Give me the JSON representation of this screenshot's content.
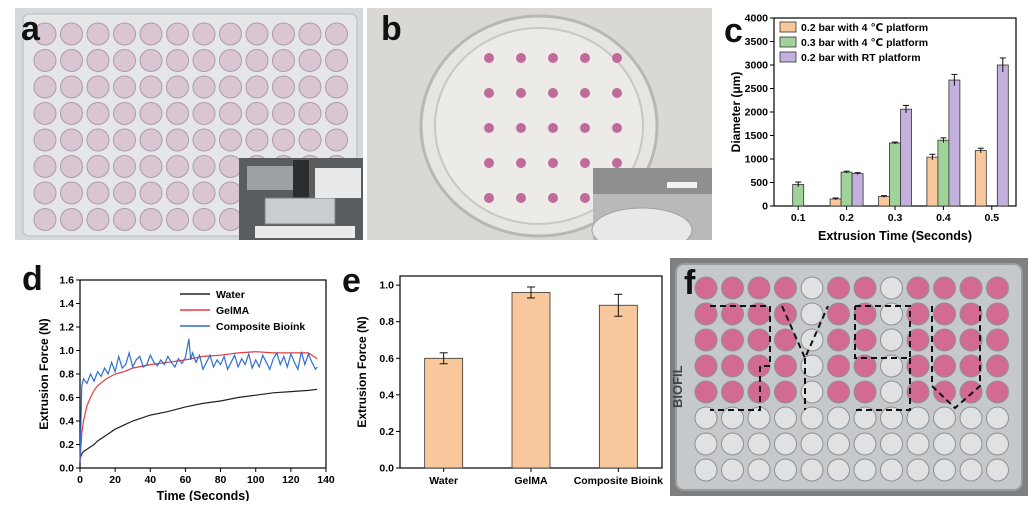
{
  "panels": {
    "a": {
      "letter": "a"
    },
    "b": {
      "letter": "b"
    },
    "c": {
      "letter": "c"
    },
    "d": {
      "letter": "d"
    },
    "e": {
      "letter": "e"
    },
    "f": {
      "letter": "f",
      "plate_brand": "BIOFIL"
    }
  },
  "chart_data": [
    {
      "id": "c",
      "type": "bar",
      "xlabel": "Extrusion Time (Seconds)",
      "ylabel": "Diameter (μm)",
      "categories": [
        "0.1",
        "0.2",
        "0.3",
        "0.4",
        "0.5"
      ],
      "ylim": [
        0,
        4000
      ],
      "yticks": [
        0,
        500,
        1000,
        1500,
        2000,
        2500,
        3000,
        3500,
        4000
      ],
      "legend": "top-left",
      "series": [
        {
          "name": "0.2 bar with 4 ℃ platform",
          "color": "#f8c89c",
          "values": [
            null,
            150,
            200,
            1040,
            1180
          ],
          "errors": [
            null,
            20,
            20,
            60,
            50
          ]
        },
        {
          "name": "0.3 bar with 4 ℃ platform",
          "color": "#9fd39a",
          "values": [
            460,
            720,
            1340,
            1400,
            null
          ],
          "errors": [
            50,
            20,
            20,
            50,
            null
          ]
        },
        {
          "name": "0.2 bar with RT platform",
          "color": "#c4b0dc",
          "values": [
            null,
            690,
            2060,
            2680,
            3000
          ],
          "errors": [
            null,
            20,
            80,
            120,
            150
          ]
        }
      ]
    },
    {
      "id": "d",
      "type": "line",
      "xlabel": "Time (Seconds)",
      "ylabel": "Extrusion Force (N)",
      "xlim": [
        0,
        140
      ],
      "ylim": [
        0,
        1.6
      ],
      "xticks": [
        0,
        20,
        40,
        60,
        80,
        100,
        120,
        140
      ],
      "yticks": [
        0.0,
        0.2,
        0.4,
        0.6,
        0.8,
        1.0,
        1.2,
        1.4,
        1.6
      ],
      "legend": "top-right",
      "series": [
        {
          "name": "Water",
          "color": "#222222",
          "x": [
            0,
            1,
            2,
            3,
            5,
            8,
            10,
            15,
            20,
            30,
            40,
            50,
            60,
            70,
            80,
            90,
            100,
            110,
            120,
            130,
            135
          ],
          "y": [
            0.08,
            0.12,
            0.14,
            0.15,
            0.17,
            0.2,
            0.23,
            0.28,
            0.33,
            0.4,
            0.45,
            0.48,
            0.52,
            0.55,
            0.57,
            0.6,
            0.62,
            0.64,
            0.65,
            0.66,
            0.67
          ]
        },
        {
          "name": "GelMA",
          "color": "#e83a3a",
          "x": [
            0,
            1,
            2,
            3,
            4,
            6,
            8,
            10,
            15,
            20,
            25,
            30,
            40,
            50,
            60,
            70,
            80,
            90,
            100,
            110,
            120,
            130,
            135
          ],
          "y": [
            0.05,
            0.3,
            0.4,
            0.47,
            0.53,
            0.6,
            0.66,
            0.7,
            0.76,
            0.8,
            0.82,
            0.85,
            0.88,
            0.9,
            0.92,
            0.95,
            0.96,
            0.98,
            0.99,
            0.98,
            0.98,
            0.98,
            0.93
          ]
        },
        {
          "name": "Composite Bioink",
          "color": "#2f6fd0",
          "x": [
            0,
            1,
            2,
            4,
            6,
            8,
            10,
            12,
            14,
            16,
            18,
            20,
            22,
            24,
            26,
            28,
            30,
            32,
            34,
            36,
            38,
            40,
            42,
            44,
            46,
            48,
            50,
            52,
            54,
            56,
            58,
            60,
            62,
            63,
            64,
            66,
            68,
            70,
            72,
            74,
            76,
            78,
            80,
            82,
            84,
            86,
            88,
            90,
            92,
            94,
            96,
            98,
            100,
            102,
            104,
            106,
            108,
            110,
            112,
            114,
            116,
            118,
            120,
            122,
            124,
            126,
            128,
            130,
            132,
            134,
            135
          ],
          "y": [
            0.05,
            0.7,
            0.76,
            0.72,
            0.8,
            0.74,
            0.82,
            0.78,
            0.85,
            0.8,
            0.9,
            0.82,
            0.95,
            0.85,
            0.88,
            0.98,
            0.86,
            0.92,
            0.95,
            0.86,
            0.88,
            0.96,
            0.9,
            0.87,
            0.92,
            0.88,
            0.95,
            0.9,
            0.86,
            0.93,
            0.89,
            0.94,
            1.1,
            0.92,
            0.98,
            0.9,
            0.96,
            0.84,
            0.9,
            0.96,
            0.86,
            0.92,
            0.88,
            0.95,
            0.84,
            0.9,
            0.96,
            0.86,
            0.93,
            0.88,
            0.97,
            0.85,
            0.92,
            0.86,
            0.96,
            0.9,
            0.84,
            0.93,
            0.98,
            0.88,
            0.95,
            0.86,
            0.97,
            0.9,
            0.84,
            0.99,
            0.88,
            0.97,
            0.9,
            0.84,
            0.86
          ]
        }
      ]
    },
    {
      "id": "e",
      "type": "bar",
      "xlabel": "",
      "ylabel": "Extrusion Force (N)",
      "categories": [
        "Water",
        "GelMA",
        "Composite Bioink"
      ],
      "ylim": [
        0,
        1.05
      ],
      "yticks": [
        0.0,
        0.2,
        0.4,
        0.6,
        0.8,
        1.0
      ],
      "series": [
        {
          "color": "#f8c89c",
          "values": [
            0.6,
            0.96,
            0.89
          ],
          "errors": [
            0.03,
            0.03,
            0.06
          ]
        }
      ]
    }
  ]
}
